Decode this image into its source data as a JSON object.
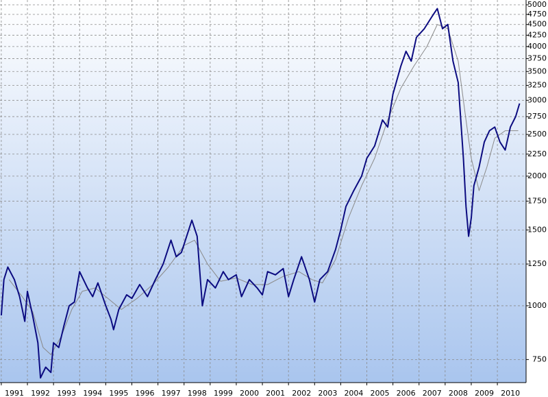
{
  "chart_data": {
    "type": "line",
    "log_scale": true,
    "grid": true,
    "xlim": [
      1990.95,
      2011.1
    ],
    "ylim": [
      663,
      5130
    ],
    "xticks": [
      1991,
      1992,
      1993,
      1994,
      1995,
      1996,
      1997,
      1998,
      1999,
      2000,
      2001,
      2002,
      2003,
      2004,
      2005,
      2006,
      2007,
      2008,
      2009,
      2010
    ],
    "yticks": [
      750,
      1000,
      1250,
      1500,
      1750,
      2000,
      2250,
      2500,
      2750,
      3000,
      3250,
      3500,
      3750,
      4000,
      4250,
      4500,
      4750,
      5000
    ],
    "series": [
      {
        "color": "#0b0b80",
        "width": 2,
        "x": [
          1991.0,
          1991.1,
          1991.25,
          1991.5,
          1991.7,
          1991.9,
          1992.0,
          1992.2,
          1992.4,
          1992.5,
          1992.7,
          1992.9,
          1993.0,
          1993.2,
          1993.4,
          1993.6,
          1993.8,
          1994.0,
          1994.3,
          1994.5,
          1994.7,
          1995.0,
          1995.2,
          1995.3,
          1995.5,
          1995.8,
          1996.0,
          1996.3,
          1996.6,
          1996.9,
          1997.2,
          1997.5,
          1997.7,
          1997.9,
          1998.1,
          1998.3,
          1998.5,
          1998.7,
          1998.9,
          1999.2,
          1999.5,
          1999.7,
          2000.0,
          2000.2,
          2000.5,
          2000.8,
          2001.0,
          2001.2,
          2001.5,
          2001.8,
          2002.0,
          2002.2,
          2002.5,
          2002.8,
          2003.0,
          2003.2,
          2003.5,
          2003.8,
          2004.0,
          2004.2,
          2004.5,
          2004.8,
          2005.0,
          2005.3,
          2005.6,
          2005.8,
          2006.0,
          2006.3,
          2006.5,
          2006.7,
          2006.9,
          2007.2,
          2007.5,
          2007.7,
          2007.9,
          2008.1,
          2008.3,
          2008.5,
          2008.7,
          2008.8,
          2008.9,
          2009.0,
          2009.1,
          2009.3,
          2009.5,
          2009.7,
          2009.9,
          2010.1,
          2010.3,
          2010.5,
          2010.7,
          2010.85
        ],
        "values": [
          950,
          1150,
          1230,
          1150,
          1050,
          920,
          1080,
          950,
          820,
          680,
          720,
          700,
          820,
          800,
          900,
          1000,
          1020,
          1200,
          1100,
          1050,
          1130,
          1000,
          930,
          880,
          980,
          1060,
          1040,
          1120,
          1050,
          1150,
          1250,
          1420,
          1300,
          1330,
          1450,
          1580,
          1450,
          1000,
          1150,
          1100,
          1200,
          1150,
          1180,
          1050,
          1150,
          1100,
          1060,
          1200,
          1180,
          1220,
          1050,
          1150,
          1300,
          1150,
          1020,
          1150,
          1200,
          1350,
          1500,
          1700,
          1850,
          2000,
          2200,
          2350,
          2700,
          2600,
          3100,
          3600,
          3900,
          3700,
          4200,
          4400,
          4700,
          4900,
          4400,
          4500,
          3700,
          3300,
          2200,
          1700,
          1450,
          1600,
          1900,
          2100,
          2400,
          2550,
          2600,
          2400,
          2300,
          2600,
          2750,
          2950
        ]
      },
      {
        "color": "#8a8a8a",
        "width": 1,
        "x": [
          1991.3,
          1991.8,
          1992.2,
          1992.6,
          1992.9,
          1993.3,
          1993.7,
          1994.1,
          1994.6,
          1995.0,
          1995.6,
          1996.2,
          1996.8,
          1997.4,
          1998.0,
          1998.4,
          1998.9,
          1999.4,
          2000.0,
          2000.6,
          2001.2,
          2001.8,
          2002.4,
          2002.9,
          2003.3,
          2003.8,
          2004.3,
          2004.8,
          2005.3,
          2005.8,
          2006.3,
          2006.8,
          2007.3,
          2007.7,
          2008.1,
          2008.5,
          2008.8,
          2009.0,
          2009.3,
          2009.6,
          2009.9,
          2010.3,
          2010.8
        ],
        "values": [
          1150,
          1050,
          970,
          800,
          770,
          850,
          980,
          1080,
          1100,
          1050,
          980,
          1040,
          1120,
          1230,
          1380,
          1420,
          1250,
          1140,
          1160,
          1120,
          1120,
          1170,
          1200,
          1150,
          1130,
          1280,
          1600,
          1900,
          2200,
          2700,
          3200,
          3600,
          4000,
          4500,
          4400,
          3700,
          2700,
          2200,
          1850,
          2100,
          2450,
          2550,
          2550
        ]
      }
    ]
  }
}
